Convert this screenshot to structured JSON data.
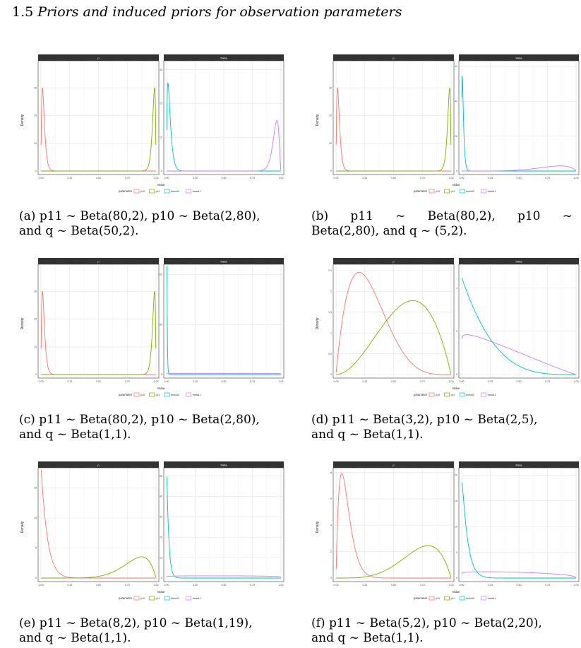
{
  "section": {
    "number": "1.5",
    "title": "Priors and induced priors for observation parameters"
  },
  "legend": {
    "title": "parameter",
    "items": [
      {
        "key": "p10",
        "label": "p10",
        "color": "#F8766D"
      },
      {
        "key": "p11",
        "label": "p11",
        "color": "#7CAE00"
      },
      {
        "key": "theta10",
        "label": "theta10",
        "color": "#00BFC4"
      },
      {
        "key": "theta11",
        "label": "theta11",
        "color": "#C77CFF"
      }
    ]
  },
  "axis_text": {
    "xlabel": "Value",
    "ylabel": "Density",
    "strip_left": "p",
    "strip_right": "theta"
  },
  "x_ticks": [
    "0.00",
    "0.25",
    "0.50",
    "0.75",
    "1.00"
  ],
  "chart_data": [
    {
      "type": "line",
      "caption": {
        "tag": "(a)",
        "lines": [
          [
            "p11 ~ Beta(80,2), p10 ~ Beta(2,80),"
          ],
          [
            "and q ~ Beta(50,2)."
          ]
        ]
      },
      "panels": [
        {
          "strip": "p",
          "ylim": [
            0,
            39
          ],
          "yticks": [
            0,
            10,
            20,
            30
          ],
          "series": [
            {
              "key": "p10",
              "a": 2,
              "b": 80
            },
            {
              "key": "p11",
              "a": 80,
              "b": 2
            }
          ]
        },
        {
          "strip": "theta",
          "ylim": [
            0,
            32
          ],
          "yticks": [
            0,
            10,
            20,
            30
          ],
          "series": [
            {
              "key": "theta10",
              "a": 1.7,
              "b": 60
            },
            {
              "key": "theta11",
              "a": 50,
              "b": 2.8
            }
          ]
        }
      ]
    },
    {
      "type": "line",
      "caption": {
        "tag": "(b)",
        "lines": [
          [
            "p11",
            "~",
            "Beta(80,2),",
            "p10",
            "~"
          ],
          [
            "Beta(2,80), and q ~ (5,2)."
          ]
        ]
      },
      "panels": [
        {
          "strip": "p",
          "ylim": [
            0,
            39
          ],
          "yticks": [
            0,
            10,
            20,
            30
          ],
          "series": [
            {
              "key": "p10",
              "a": 2,
              "b": 80
            },
            {
              "key": "p11",
              "a": 80,
              "b": 2
            }
          ]
        },
        {
          "strip": "theta",
          "ylim": [
            0,
            62
          ],
          "yticks": [
            0,
            20,
            40,
            60
          ],
          "series": [
            {
              "key": "theta10",
              "a": 1.6,
              "b": 120
            },
            {
              "key": "theta11",
              "a": 6,
              "b": 1.8
            }
          ]
        }
      ]
    },
    {
      "type": "line",
      "caption": {
        "tag": "(c)",
        "lines": [
          [
            "p11 ~ Beta(80,2), p10 ~ Beta(2,80),"
          ],
          [
            "and q ~ Beta(1,1)."
          ]
        ]
      },
      "panels": [
        {
          "strip": "p",
          "ylim": [
            0,
            39
          ],
          "yticks": [
            0,
            10,
            20,
            30
          ],
          "series": [
            {
              "key": "p10",
              "a": 2,
              "b": 80
            },
            {
              "key": "p11",
              "a": 80,
              "b": 2
            }
          ]
        },
        {
          "strip": "theta",
          "ylim": [
            0,
            108
          ],
          "yticks": [
            0,
            50,
            100
          ],
          "series": [
            {
              "key": "theta10",
              "a": 1.05,
              "b": 300
            },
            {
              "key": "theta11",
              "a": 1.02,
              "b": 1.02
            }
          ]
        }
      ]
    },
    {
      "type": "line",
      "caption": {
        "tag": "(d)",
        "lines": [
          [
            "p11 ~ Beta(3,2), p10 ~ Beta(2,5),"
          ],
          [
            "and q ~ Beta(1,1)."
          ]
        ]
      },
      "panels": [
        {
          "strip": "p",
          "ylim": [
            0,
            2.6
          ],
          "yticks": [
            0.0,
            0.5,
            1.0,
            1.5,
            2.0,
            2.5
          ],
          "series": [
            {
              "key": "p10",
              "a": 2,
              "b": 5
            },
            {
              "key": "p11",
              "a": 3,
              "b": 2
            }
          ]
        },
        {
          "strip": "theta",
          "ylim": [
            0,
            5
          ],
          "yticks": [
            0,
            2,
            4
          ],
          "series": [
            {
              "key": "theta10",
              "a": 1.0,
              "b": 4.5
            },
            {
              "key": "theta11",
              "a": 1.05,
              "b": 2.1
            }
          ]
        }
      ]
    },
    {
      "type": "line",
      "caption": {
        "tag": "(e)",
        "lines": [
          [
            "p11 ~ Beta(8,2), p10 ~ Beta(1,19),"
          ],
          [
            "and q ~ Beta(1,1)."
          ]
        ]
      },
      "panels": [
        {
          "strip": "p",
          "ylim": [
            0,
            18
          ],
          "yticks": [
            0,
            5,
            10,
            15
          ],
          "series": [
            {
              "key": "p10",
              "a": 1,
              "b": 19
            },
            {
              "key": "p11",
              "a": 8,
              "b": 2
            }
          ]
        },
        {
          "strip": "theta",
          "ylim": [
            0,
            53
          ],
          "yticks": [
            0,
            10,
            20,
            30,
            40,
            50
          ],
          "series": [
            {
              "key": "theta10",
              "a": 1.05,
              "b": 60
            },
            {
              "key": "theta11",
              "a": 1.1,
              "b": 1.15
            }
          ]
        }
      ]
    },
    {
      "type": "line",
      "caption": {
        "tag": "(f)",
        "lines": [
          [
            "p11 ~ Beta(5,2), p10 ~ Beta(2,20),"
          ],
          [
            "and q ~ Beta(1,1)."
          ]
        ]
      },
      "panels": [
        {
          "strip": "p",
          "ylim": [
            0,
            8.2
          ],
          "yticks": [
            0,
            2,
            4,
            6,
            8
          ],
          "series": [
            {
              "key": "p10",
              "a": 2,
              "b": 20
            },
            {
              "key": "p11",
              "a": 5,
              "b": 2
            }
          ]
        },
        {
          "strip": "theta",
          "ylim": [
            0,
            21
          ],
          "yticks": [
            0,
            5,
            10,
            15,
            20
          ],
          "series": [
            {
              "key": "theta10",
              "a": 1.05,
              "b": 22
            },
            {
              "key": "theta11",
              "a": 1.1,
              "b": 1.4
            }
          ]
        }
      ]
    }
  ]
}
